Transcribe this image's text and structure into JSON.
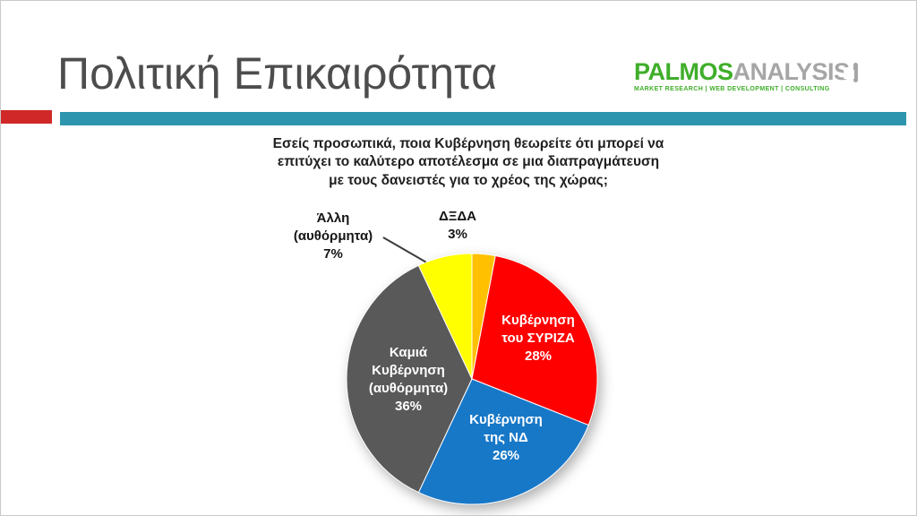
{
  "header": {
    "title": "Πολιτική Επικαιρότητα",
    "logo": {
      "name_primary": "PALMOS",
      "name_secondary": "ANALYSIS",
      "tagline": "MARKET RESEARCH | WEB DEVELOPMENT | CONSULTING"
    }
  },
  "question": "Εσείς προσωπικά, ποια Κυβέρνηση θεωρείτε ότι μπορεί να\nεπιτύχει το καλύτερο αποτέλεσμα σε μια διαπραγμάτευση\nμε τους δανειστές για το χρέος της χώρας;",
  "theme": {
    "accent_teal": "#2d96ae",
    "accent_red": "#d02828",
    "title_color": "#4d4d4d",
    "logo_green": "#3fae2a",
    "logo_gray": "#a6a6a6"
  },
  "chart_data": {
    "type": "pie",
    "title": "",
    "start_angle_deg": 0,
    "direction": "clockwise",
    "legend_position": "none",
    "slices": [
      {
        "label": "ΔΞΔΑ",
        "value": 3,
        "color": "#FFC000"
      },
      {
        "label": "Κυβέρνηση του ΣΥΡΙΖΑ",
        "value": 28,
        "color": "#FF0000"
      },
      {
        "label": "Κυβέρνηση της ΝΔ",
        "value": 26,
        "color": "#1878C8"
      },
      {
        "label": "Καμιά Κυβέρνηση (αυθόρμητα)",
        "value": 36,
        "color": "#595959"
      },
      {
        "label": "Άλλη (αυθόρμητα)",
        "value": 7,
        "color": "#FFFF00"
      }
    ],
    "labels": {
      "syriza": "Κυβέρνηση\nτου ΣΥΡΙΖΑ\n28%",
      "nd": "Κυβέρνηση\nτης ΝΔ\n26%",
      "none": "Καμιά\nΚυβέρνηση\n(αυθόρμητα)\n36%",
      "alli": "Άλλη\n(αυθόρμητα)\n7%",
      "dxda": "ΔΞΔΑ\n3%"
    }
  }
}
